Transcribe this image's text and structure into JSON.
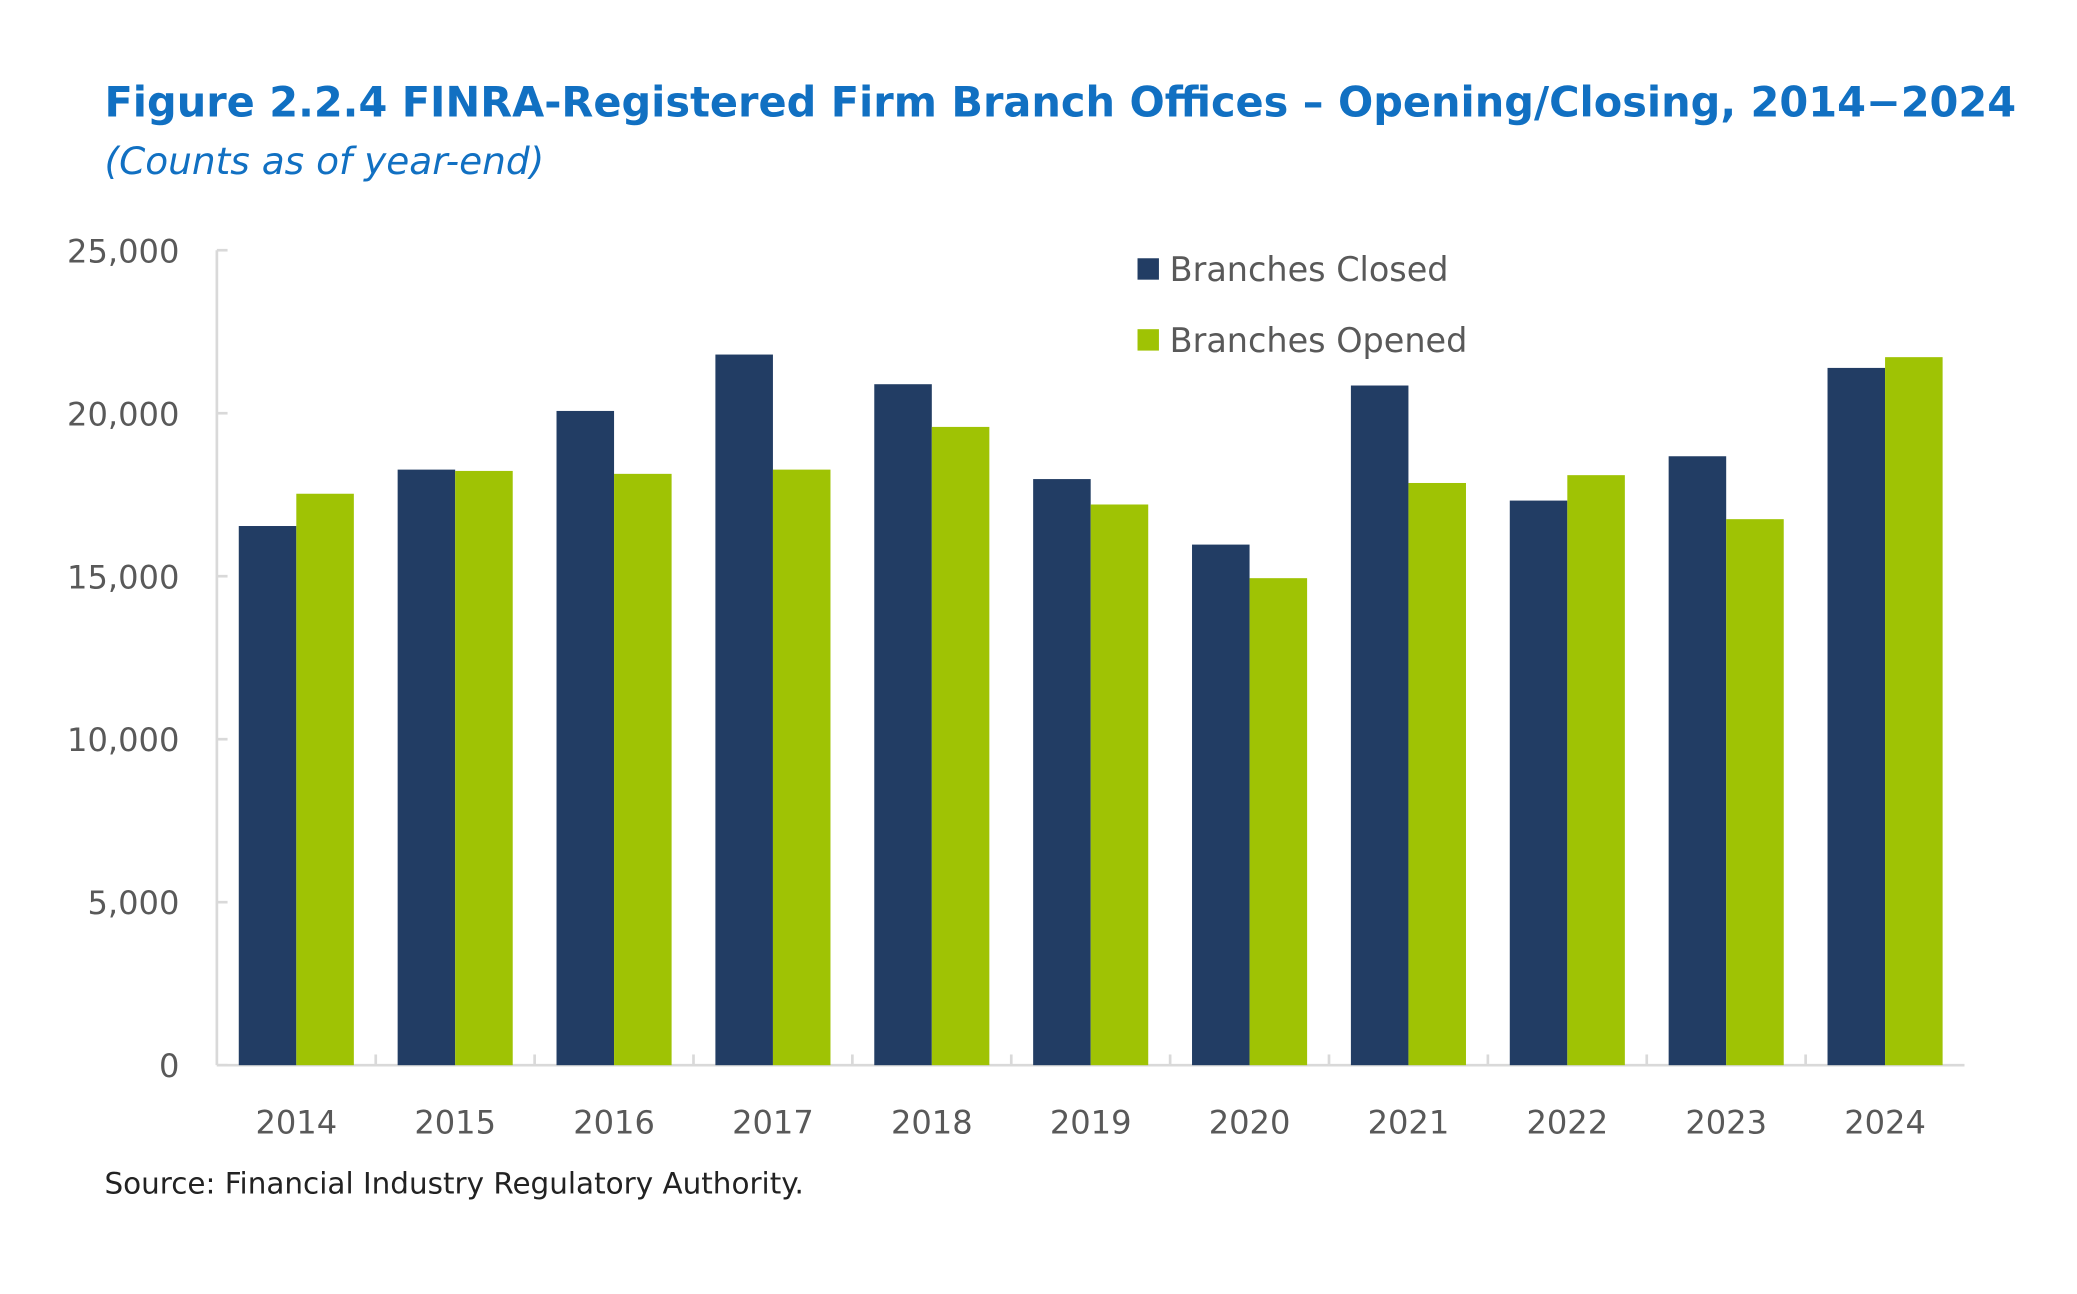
{
  "chart_data": {
    "type": "bar",
    "title": "Figure 2.2.4 FINRA-Registered Firm Branch Offices – Opening/Closing, 2014−2024",
    "subtitle": "(Counts as of year-end)",
    "source": "Source: Financial Industry Regulatory Authority.",
    "xlabel": "",
    "ylabel": "",
    "ylim": [
      0,
      25000
    ],
    "yticks": [
      0,
      5000,
      10000,
      15000,
      20000,
      25000
    ],
    "ytick_labels": [
      "0",
      "5,000",
      "10,000",
      "15,000",
      "20,000",
      "25,000"
    ],
    "grid": false,
    "legend_position": "top-right",
    "categories": [
      "2014",
      "2015",
      "2016",
      "2017",
      "2018",
      "2019",
      "2020",
      "2021",
      "2022",
      "2023",
      "2024"
    ],
    "series": [
      {
        "name": "Branches Closed",
        "color": "#223d64",
        "values": [
          16540,
          18270,
          20070,
          21800,
          20890,
          17980,
          15970,
          20850,
          17320,
          18680,
          21390
        ]
      },
      {
        "name": "Branches Opened",
        "color": "#9fc304",
        "values": [
          17530,
          18230,
          18140,
          18270,
          19580,
          17200,
          14940,
          17860,
          18100,
          16750,
          21720
        ]
      }
    ]
  }
}
